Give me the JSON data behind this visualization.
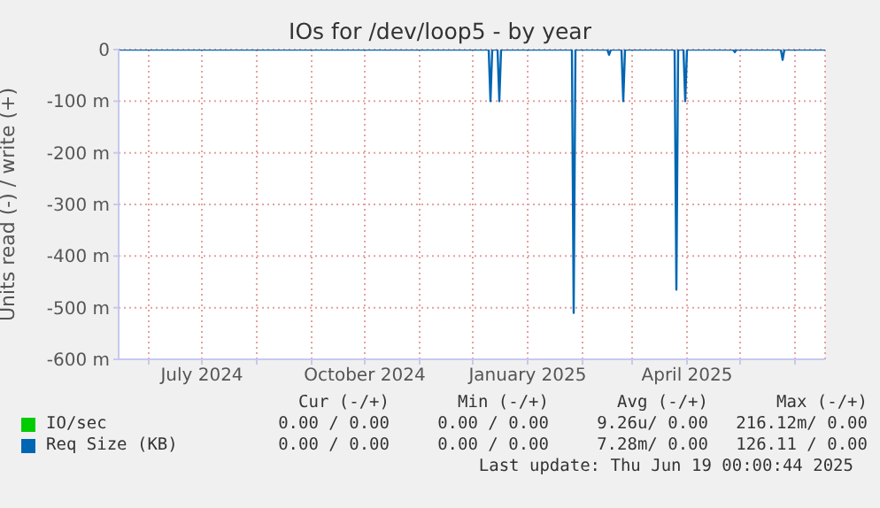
{
  "chart_data": {
    "type": "line",
    "title": "IOs for /dev/loop5 - by year",
    "ylabel": "Units read (-) / write (+)",
    "xlim": [
      "2024-05-15",
      "2025-06-18"
    ],
    "xticks": [
      {
        "value": "2024-06-01",
        "label": null
      },
      {
        "value": "2024-07-01",
        "label": "July 2024"
      },
      {
        "value": "2024-08-01",
        "label": null
      },
      {
        "value": "2024-09-01",
        "label": null
      },
      {
        "value": "2024-10-01",
        "label": "October 2024"
      },
      {
        "value": "2024-11-01",
        "label": null
      },
      {
        "value": "2024-12-01",
        "label": null
      },
      {
        "value": "2025-01-01",
        "label": "January 2025"
      },
      {
        "value": "2025-02-01",
        "label": null
      },
      {
        "value": "2025-03-01",
        "label": null
      },
      {
        "value": "2025-04-01",
        "label": "April 2025"
      },
      {
        "value": "2025-05-01",
        "label": null
      },
      {
        "value": "2025-06-01",
        "label": null
      }
    ],
    "ylim": [
      -600,
      0
    ],
    "yticks": [
      {
        "value": 0,
        "label": "0"
      },
      {
        "value": -100,
        "label": "-100 m"
      },
      {
        "value": -200,
        "label": "-200 m"
      },
      {
        "value": -300,
        "label": "-300 m"
      },
      {
        "value": -400,
        "label": "-400 m"
      },
      {
        "value": -500,
        "label": "-500 m"
      },
      {
        "value": -600,
        "label": "-600 m"
      }
    ],
    "grid": true,
    "legend": "bottom",
    "series": [
      {
        "name": "IO/sec",
        "color": "#00cc00"
      },
      {
        "name": "Req Size (KB)",
        "color": "#0066b3",
        "x": [
          "2024-05-15",
          "2024-12-10",
          "2024-12-11",
          "2024-12-12",
          "2024-12-15",
          "2024-12-16",
          "2024-12-17",
          "2025-01-26",
          "2025-01-27",
          "2025-01-28",
          "2025-02-15",
          "2025-02-16",
          "2025-02-17",
          "2025-02-23",
          "2025-02-24",
          "2025-02-25",
          "2025-03-25",
          "2025-03-26",
          "2025-03-27",
          "2025-03-30",
          "2025-03-31",
          "2025-04-01",
          "2025-04-27",
          "2025-04-28",
          "2025-04-29",
          "2025-05-24",
          "2025-05-25",
          "2025-05-26",
          "2025-06-18"
        ],
        "values": [
          0,
          0,
          -100,
          0,
          0,
          -100,
          0,
          0,
          -510,
          0,
          0,
          -10,
          0,
          0,
          -100,
          0,
          0,
          -465,
          0,
          0,
          -100,
          0,
          0,
          -5,
          0,
          0,
          -20,
          0,
          0
        ]
      }
    ],
    "annotations": [
      "Cur (-/+)",
      "Min (-/+)",
      "Avg (-/+)",
      "Max (-/+)",
      "0.00 / 0.00",
      "0.00 / 0.00",
      "9.26u/ 0.00",
      "216.12m/ 0.00",
      "0.00 / 0.00",
      "0.00 / 0.00",
      "7.28m/ 0.00",
      "126.11 / 0.00",
      "Last update: Thu Jun 19 00:00:44 2025"
    ]
  }
}
